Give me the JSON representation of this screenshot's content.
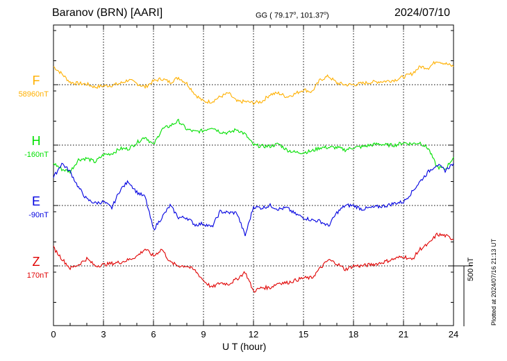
{
  "header": {
    "station": "Baranov (BRN)  [AARI]",
    "coord_prefix": "GG ( 79.17",
    "coord_mid": ", 101.37",
    "coord_suffix": ")",
    "degree": "o",
    "date": "2024/07/10"
  },
  "footer": {
    "scale_label": "500 nT",
    "plotted_note": "Plotted at 2024/07/16 21:13 UT"
  },
  "colors": {
    "F": "#ffb000",
    "H": "#00e000",
    "E": "#0000e0",
    "Z": "#e00000"
  },
  "chart_data": {
    "type": "line",
    "title": "Baranov (BRN)  [AARI]",
    "xlabel": "U T (hour)",
    "xlim": [
      0,
      24
    ],
    "xticks": [
      "0",
      "3",
      "6",
      "9",
      "12",
      "15",
      "18",
      "21",
      "24"
    ],
    "scale_bar_nT": 500,
    "grid": true,
    "series": [
      {
        "name": "F",
        "baseline": "58960nT",
        "x": [
          0,
          0.5,
          1,
          1.5,
          2,
          2.5,
          3,
          3.5,
          4,
          4.5,
          5,
          5.5,
          6,
          6.5,
          7,
          7.5,
          8,
          8.5,
          9,
          9.5,
          10,
          10.5,
          11,
          11.5,
          12,
          12.5,
          13,
          13.5,
          14,
          14.5,
          15,
          15.5,
          16,
          16.5,
          17,
          17.5,
          18,
          18.5,
          19,
          19.5,
          20,
          20.5,
          21,
          21.5,
          22,
          22.5,
          23,
          23.5,
          24
        ],
        "y": [
          150,
          90,
          20,
          10,
          5,
          -20,
          -10,
          -5,
          10,
          40,
          10,
          -20,
          30,
          50,
          20,
          60,
          10,
          -80,
          -140,
          -140,
          -100,
          -70,
          -140,
          -140,
          -150,
          -140,
          -80,
          -70,
          -100,
          -75,
          -40,
          -60,
          40,
          70,
          15,
          0,
          0,
          10,
          20,
          25,
          30,
          40,
          65,
          90,
          150,
          140,
          200,
          175,
          150
        ]
      },
      {
        "name": "H",
        "baseline": "-160nT",
        "x": [
          0,
          0.5,
          1,
          1.5,
          2,
          2.5,
          3,
          3.5,
          4,
          4.5,
          5,
          5.5,
          6,
          6.5,
          7,
          7.5,
          8,
          8.5,
          9,
          9.5,
          10,
          10.5,
          11,
          11.5,
          12,
          12.5,
          13,
          13.5,
          14,
          14.5,
          15,
          15.5,
          16,
          16.5,
          17,
          17.5,
          18,
          18.5,
          19,
          19.5,
          20,
          20.5,
          21,
          21.5,
          22,
          22.5,
          23,
          23.5,
          24
        ],
        "y": [
          -150,
          -200,
          -220,
          -120,
          -110,
          -140,
          -80,
          -70,
          -30,
          -30,
          20,
          70,
          0,
          130,
          160,
          200,
          130,
          110,
          120,
          150,
          110,
          100,
          130,
          90,
          0,
          -10,
          -10,
          10,
          -40,
          -60,
          -60,
          -50,
          -20,
          -20,
          -20,
          -40,
          -20,
          -15,
          0,
          10,
          0,
          0,
          20,
          10,
          20,
          -30,
          -180,
          -200,
          -100
        ]
      },
      {
        "name": "E",
        "baseline": "-90nT",
        "x": [
          0,
          0.5,
          1,
          1.5,
          2,
          2.5,
          3,
          3.5,
          4,
          4.5,
          5,
          5.5,
          6,
          6.5,
          7,
          7.5,
          8,
          8.5,
          9,
          9.5,
          10,
          10.5,
          11,
          11.5,
          12,
          12.5,
          13,
          13.5,
          14,
          14.5,
          15,
          15.5,
          16,
          16.5,
          17,
          17.5,
          18,
          18.5,
          19,
          19.5,
          20,
          20.5,
          21,
          21.5,
          22,
          22.5,
          23,
          23.5,
          24
        ],
        "y": [
          230,
          350,
          280,
          150,
          50,
          20,
          30,
          -20,
          130,
          200,
          110,
          70,
          -200,
          -100,
          0,
          -100,
          -100,
          -160,
          -150,
          -180,
          -50,
          -60,
          -60,
          -250,
          -10,
          -20,
          0,
          -30,
          -20,
          -70,
          -100,
          -120,
          -130,
          -170,
          -60,
          0,
          0,
          -30,
          -20,
          -10,
          0,
          20,
          30,
          110,
          200,
          280,
          340,
          290,
          350
        ]
      },
      {
        "name": "Z",
        "baseline": "170nT",
        "x": [
          0,
          0.5,
          1,
          1.5,
          2,
          2.5,
          3,
          3.5,
          4,
          4.5,
          5,
          5.5,
          6,
          6.5,
          7,
          7.5,
          8,
          8.5,
          9,
          9.5,
          10,
          10.5,
          11,
          11.5,
          12,
          12.5,
          13,
          13.5,
          14,
          14.5,
          15,
          15.5,
          16,
          16.5,
          17,
          17.5,
          18,
          18.5,
          19,
          19.5,
          20,
          20.5,
          21,
          21.5,
          22,
          22.5,
          23,
          23.5,
          24
        ],
        "y": [
          150,
          60,
          -20,
          10,
          60,
          0,
          10,
          20,
          30,
          50,
          80,
          140,
          80,
          140,
          30,
          0,
          0,
          -40,
          -120,
          -180,
          -140,
          -150,
          -110,
          -50,
          -210,
          -180,
          -180,
          -140,
          -140,
          -120,
          -100,
          -100,
          -20,
          50,
          20,
          -30,
          0,
          0,
          10,
          20,
          40,
          60,
          80,
          50,
          140,
          180,
          260,
          250,
          220
        ]
      }
    ]
  }
}
